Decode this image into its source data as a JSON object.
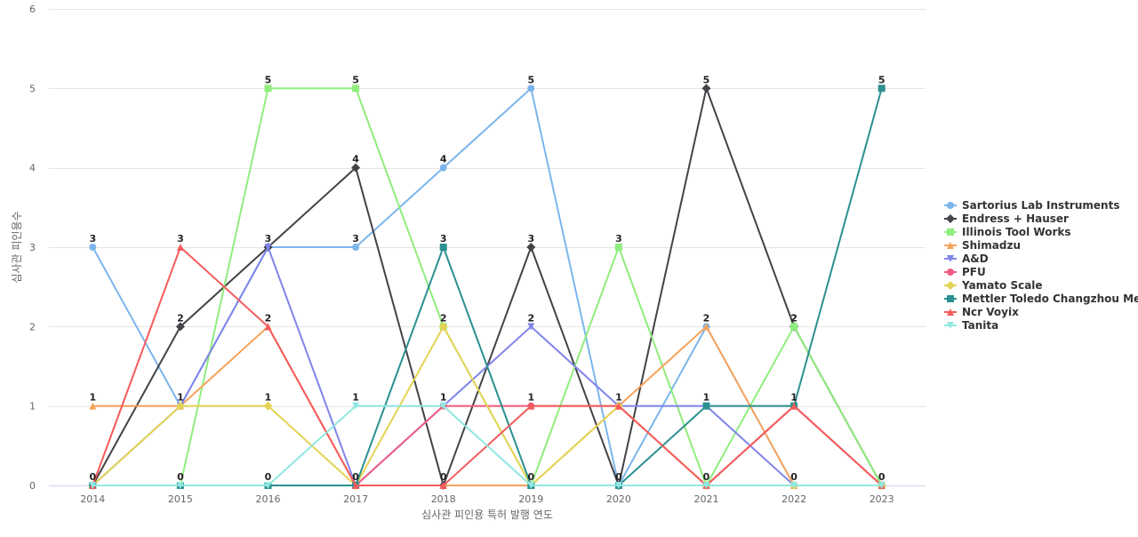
{
  "chart_data": {
    "type": "line",
    "title": "",
    "xlabel": "심사관 피인용 특허 발행 연도",
    "ylabel": "심사관 피인용수",
    "categories": [
      "2014",
      "2015",
      "2016",
      "2017",
      "2018",
      "2019",
      "2020",
      "2021",
      "2022",
      "2023"
    ],
    "ylim": [
      0,
      6
    ],
    "yticks": [
      0,
      1,
      2,
      3,
      4,
      5,
      6
    ],
    "grid": true,
    "legend_position": "right",
    "series": [
      {
        "name": "Sartorius Lab Instruments",
        "color": "#7cb5ec",
        "marker": "circle",
        "values": [
          3,
          1,
          3,
          3,
          4,
          5,
          0,
          2,
          0,
          0
        ]
      },
      {
        "name": "Endress + Hauser",
        "color": "#434348",
        "marker": "diamond",
        "values": [
          0,
          2,
          3,
          4,
          0,
          3,
          0,
          5,
          2,
          0
        ]
      },
      {
        "name": "Illinois Tool Works",
        "color": "#90ed7d",
        "marker": "square",
        "values": [
          0,
          0,
          5,
          5,
          2,
          0,
          3,
          0,
          2,
          0
        ]
      },
      {
        "name": "Shimadzu",
        "color": "#f7a35c",
        "marker": "triangle",
        "values": [
          1,
          1,
          2,
          0,
          0,
          0,
          1,
          2,
          0,
          0
        ]
      },
      {
        "name": "A&D",
        "color": "#8085e9",
        "marker": "triangle-down",
        "values": [
          0,
          1,
          3,
          0,
          1,
          2,
          1,
          1,
          0,
          0
        ]
      },
      {
        "name": "PFU",
        "color": "#f15c80",
        "marker": "circle",
        "values": [
          0,
          0,
          0,
          0,
          1,
          1,
          1,
          0,
          1,
          0
        ]
      },
      {
        "name": "Yamato Scale",
        "color": "#e4d354",
        "marker": "diamond",
        "values": [
          0,
          1,
          1,
          0,
          2,
          0,
          1,
          0,
          0,
          0
        ]
      },
      {
        "name": "Mettler Toledo Changzhou Me...",
        "color": "#2b908f",
        "marker": "square",
        "values": [
          0,
          0,
          0,
          0,
          3,
          0,
          0,
          1,
          1,
          5
        ]
      },
      {
        "name": "Ncr Voyix",
        "color": "#f45b5b",
        "marker": "triangle",
        "values": [
          0,
          3,
          2,
          0,
          0,
          1,
          1,
          0,
          1,
          0
        ]
      },
      {
        "name": "Tanita",
        "color": "#91e8e1",
        "marker": "triangle-down",
        "values": [
          0,
          0,
          0,
          1,
          1,
          0,
          0,
          0,
          0,
          0
        ]
      }
    ],
    "data_labels": [
      {
        "x": "2014",
        "value": 3
      },
      {
        "x": "2015",
        "value": 3
      },
      {
        "x": "2016",
        "value": 5
      },
      {
        "x": "2017",
        "value": 5
      },
      {
        "x": "2018",
        "value": 4
      },
      {
        "x": "2019",
        "value": 5
      },
      {
        "x": "2020",
        "value": 3
      },
      {
        "x": "2021",
        "value": 5
      },
      {
        "x": "2022",
        "value": 2
      },
      {
        "x": "2023",
        "value": 5
      },
      {
        "x": "2014",
        "value": 1
      },
      {
        "x": "2015",
        "value": 2
      },
      {
        "x": "2016",
        "value": 3
      },
      {
        "x": "2017",
        "value": 4
      },
      {
        "x": "2018",
        "value": 3
      },
      {
        "x": "2019",
        "value": 3
      },
      {
        "x": "2021",
        "value": 2
      },
      {
        "x": "2022",
        "value": 2
      },
      {
        "x": "2014",
        "value": 0
      },
      {
        "x": "2015",
        "value": 1
      },
      {
        "x": "2016",
        "value": 2
      },
      {
        "x": "2017",
        "value": 3
      },
      {
        "x": "2018",
        "value": 2
      },
      {
        "x": "2019",
        "value": 2
      },
      {
        "x": "2020",
        "value": 1
      },
      {
        "x": "2021",
        "value": 1
      },
      {
        "x": "2022",
        "value": 1
      },
      {
        "x": "2023",
        "value": 0
      },
      {
        "x": "2015",
        "value": 0
      },
      {
        "x": "2016",
        "value": 1
      },
      {
        "x": "2017",
        "value": 1
      },
      {
        "x": "2018",
        "value": 1
      },
      {
        "x": "2019",
        "value": 1
      },
      {
        "x": "2020",
        "value": 0
      },
      {
        "x": "2021",
        "value": 0
      },
      {
        "x": "2022",
        "value": 0
      },
      {
        "x": "2016",
        "value": 0
      },
      {
        "x": "2017",
        "value": 0
      },
      {
        "x": "2018",
        "value": 0
      },
      {
        "x": "2019",
        "value": 0
      }
    ]
  }
}
